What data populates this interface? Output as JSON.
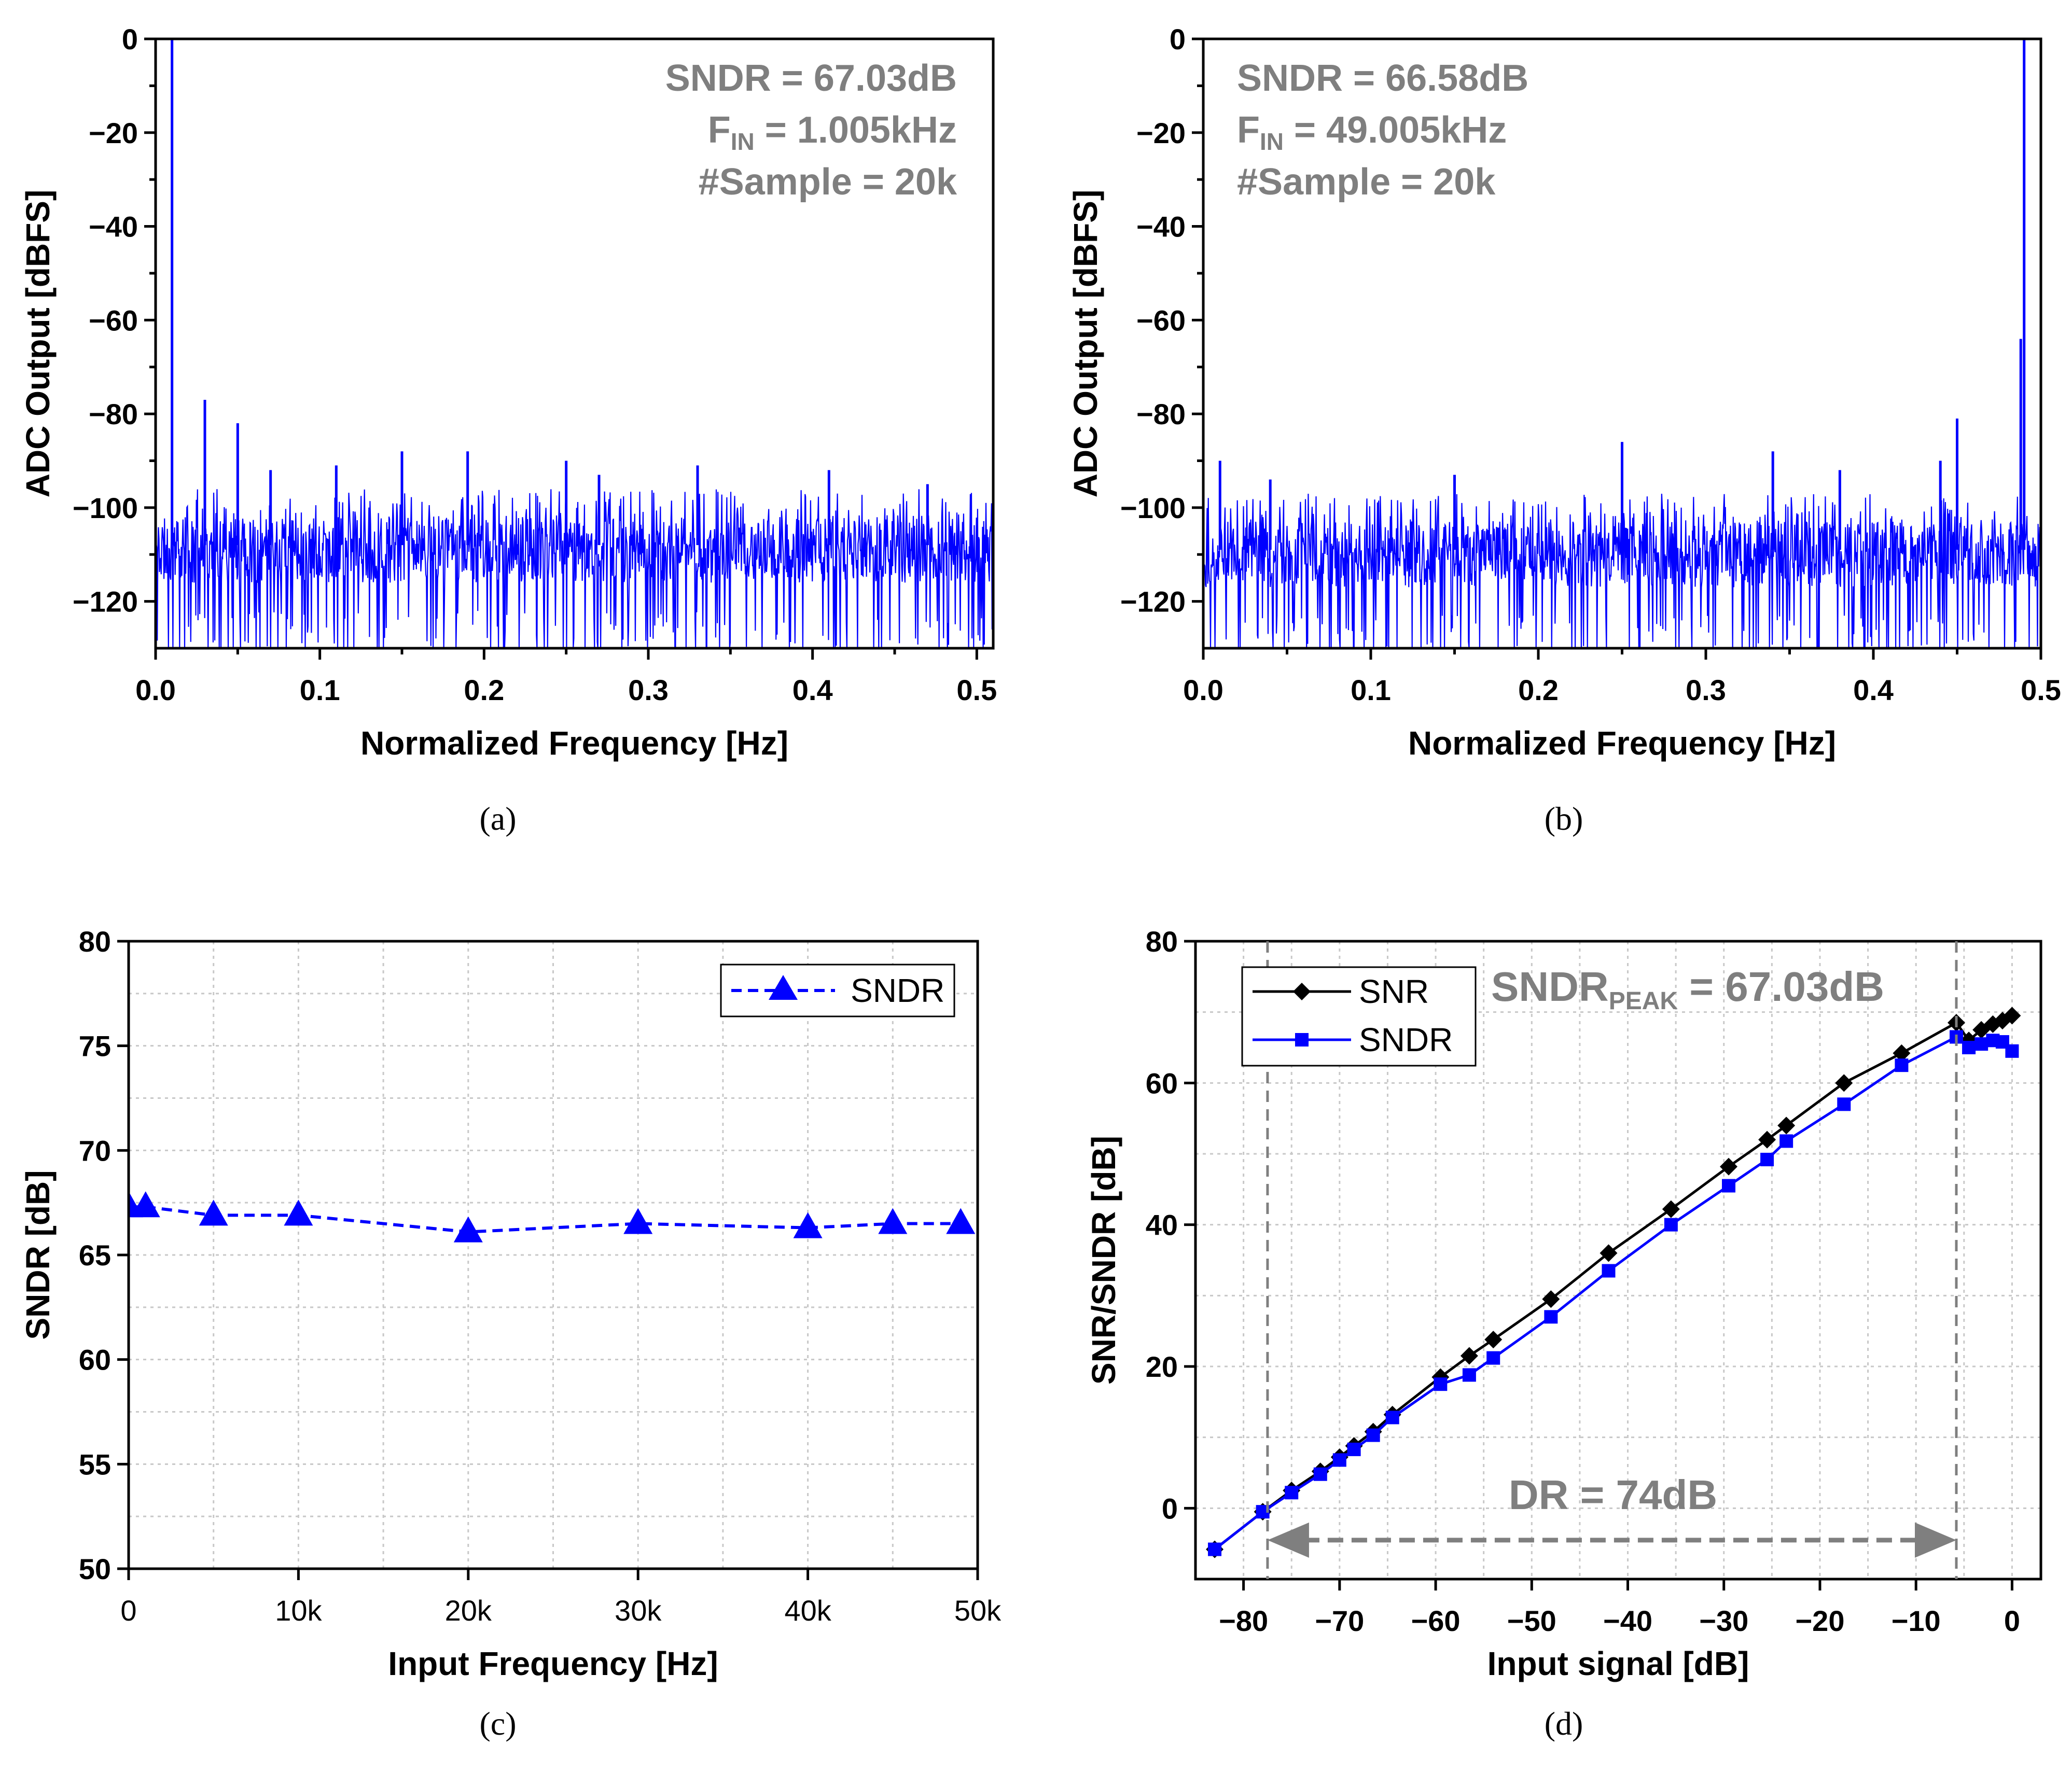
{
  "chart_data": [
    {
      "panel_label": "(a)",
      "type": "line",
      "xlabel": "Normalized Frequency [Hz]",
      "ylabel": "ADC Output [dBFS]",
      "xlim": [
        0,
        0.51
      ],
      "ylim": [
        -130,
        0
      ],
      "x_ticks": [
        "0.0",
        "0.1",
        "0.2",
        "0.3",
        "0.4",
        "0.5"
      ],
      "y_ticks": [
        "0",
        "−20",
        "−40",
        "−60",
        "−80",
        "−100",
        "−120"
      ],
      "annotations": {
        "sndr": "SNDR = 67.03dB",
        "fin_prefix": "F",
        "fin_sub": "IN",
        "fin_value": " = 1.005kHz",
        "samples": "#Sample = 20k"
      },
      "line_color": "#0000ff",
      "noise_floor_db": -108,
      "series": [
        {
          "peaks": [
            {
              "x": 0.01,
              "y": 0
            },
            {
              "x": 0.03,
              "y": -77
            },
            {
              "x": 0.05,
              "y": -82
            },
            {
              "x": 0.07,
              "y": -92
            },
            {
              "x": 0.11,
              "y": -91
            },
            {
              "x": 0.15,
              "y": -88
            },
            {
              "x": 0.19,
              "y": -88
            },
            {
              "x": 0.25,
              "y": -90
            },
            {
              "x": 0.27,
              "y": -93
            },
            {
              "x": 0.33,
              "y": -91
            },
            {
              "x": 0.41,
              "y": -92
            },
            {
              "x": 0.47,
              "y": -95
            }
          ]
        }
      ]
    },
    {
      "panel_label": "(b)",
      "type": "line",
      "xlabel": "Normalized Frequency [Hz]",
      "ylabel": "ADC Output [dBFS]",
      "xlim": [
        0,
        0.5
      ],
      "ylim": [
        -130,
        0
      ],
      "x_ticks": [
        "0.0",
        "0.1",
        "0.2",
        "0.3",
        "0.4",
        "0.5"
      ],
      "y_ticks": [
        "0",
        "−20",
        "−40",
        "−60",
        "−80",
        "−100",
        "−120"
      ],
      "annotations": {
        "sndr": "SNDR = 66.58dB",
        "fin_prefix": "F",
        "fin_sub": "IN",
        "fin_value": " = 49.005kHz",
        "samples": "#Sample = 20k"
      },
      "line_color": "#0000ff",
      "noise_floor_db": -109,
      "series": [
        {
          "peaks": [
            {
              "x": 0.49,
              "y": 0
            },
            {
              "x": 0.488,
              "y": -64
            },
            {
              "x": 0.45,
              "y": -81
            },
            {
              "x": 0.25,
              "y": -86
            },
            {
              "x": 0.34,
              "y": -88
            },
            {
              "x": 0.44,
              "y": -90
            },
            {
              "x": 0.01,
              "y": -90
            },
            {
              "x": 0.15,
              "y": -93
            },
            {
              "x": 0.38,
              "y": -92
            },
            {
              "x": 0.04,
              "y": -94
            }
          ]
        }
      ]
    },
    {
      "panel_label": "(c)",
      "type": "line",
      "xlabel": "Input Frequency [Hz]",
      "ylabel": "SNDR [dB]",
      "xlim": [
        0,
        50000
      ],
      "ylim": [
        50,
        80
      ],
      "x_ticks": [
        "0",
        "10k",
        "20k",
        "30k",
        "40k",
        "50k"
      ],
      "y_ticks": [
        "50",
        "55",
        "60",
        "65",
        "70",
        "75",
        "80"
      ],
      "legend": {
        "placement": "top-right",
        "entries": [
          "SNDR"
        ]
      },
      "grid": true,
      "series": [
        {
          "name": "SNDR",
          "color": "#0000ff",
          "style": "dashed",
          "marker": "triangle",
          "x": [
            0,
            1000,
            5000,
            10000,
            20000,
            30000,
            40000,
            45000,
            49000
          ],
          "y": [
            67.3,
            67.3,
            66.9,
            66.9,
            66.1,
            66.5,
            66.3,
            66.5,
            66.5
          ]
        }
      ]
    },
    {
      "panel_label": "(d)",
      "type": "line",
      "xlabel": "Input signal [dB]",
      "ylabel": "SNR/SNDR [dB]",
      "xlim": [
        -85,
        3
      ],
      "ylim": [
        -10,
        80
      ],
      "x_ticks": [
        "−80",
        "−70",
        "−60",
        "−50",
        "−40",
        "−30",
        "−20",
        "−10",
        "0"
      ],
      "y_ticks": [
        "0",
        "20",
        "40",
        "60",
        "80"
      ],
      "legend": {
        "placement": "top-left",
        "entries": [
          "SNR",
          "SNDR"
        ]
      },
      "grid": true,
      "annotations": {
        "peak_prefix": "SNDR",
        "peak_sub": "PEAK",
        "peak_value": " = 67.03dB",
        "dr": "DR = 74dB",
        "dr_from": -77.5,
        "dr_to": -5.8
      },
      "series": [
        {
          "name": "SNR",
          "color": "#000000",
          "marker": "diamond",
          "x": [
            -83,
            -78,
            -75,
            -72,
            -70,
            -68.5,
            -66.5,
            -64.5,
            -59.5,
            -56.5,
            -54,
            -48,
            -42,
            -35.5,
            -29.5,
            -25.5,
            -23.5,
            -17.5,
            -11.5,
            -5.8,
            -4.5,
            -3.2,
            -2,
            -1,
            0
          ],
          "y": [
            -5.8,
            -0.5,
            2.5,
            5.2,
            7.2,
            8.8,
            10.8,
            13.2,
            18.5,
            21.5,
            23.8,
            29.5,
            36,
            42.2,
            48.2,
            52,
            54,
            60,
            64.2,
            68.5,
            66,
            67.5,
            68.3,
            68.8,
            69.5
          ]
        },
        {
          "name": "SNDR",
          "color": "#0000ff",
          "marker": "square",
          "x": [
            -83,
            -78,
            -75,
            -72,
            -70,
            -68.5,
            -66.5,
            -64.5,
            -59.5,
            -56.5,
            -54,
            -48,
            -42,
            -35.5,
            -29.5,
            -25.5,
            -23.5,
            -17.5,
            -11.5,
            -5.8,
            -4.5,
            -3.2,
            -2,
            -1,
            0
          ],
          "y": [
            -5.8,
            -0.5,
            2.2,
            4.8,
            6.8,
            8.3,
            10.3,
            12.8,
            17.5,
            18.8,
            21.2,
            27,
            33.5,
            40,
            45.5,
            49.2,
            51.8,
            57,
            62.5,
            66.5,
            65,
            65.5,
            66,
            65.8,
            64.5
          ]
        }
      ]
    }
  ]
}
